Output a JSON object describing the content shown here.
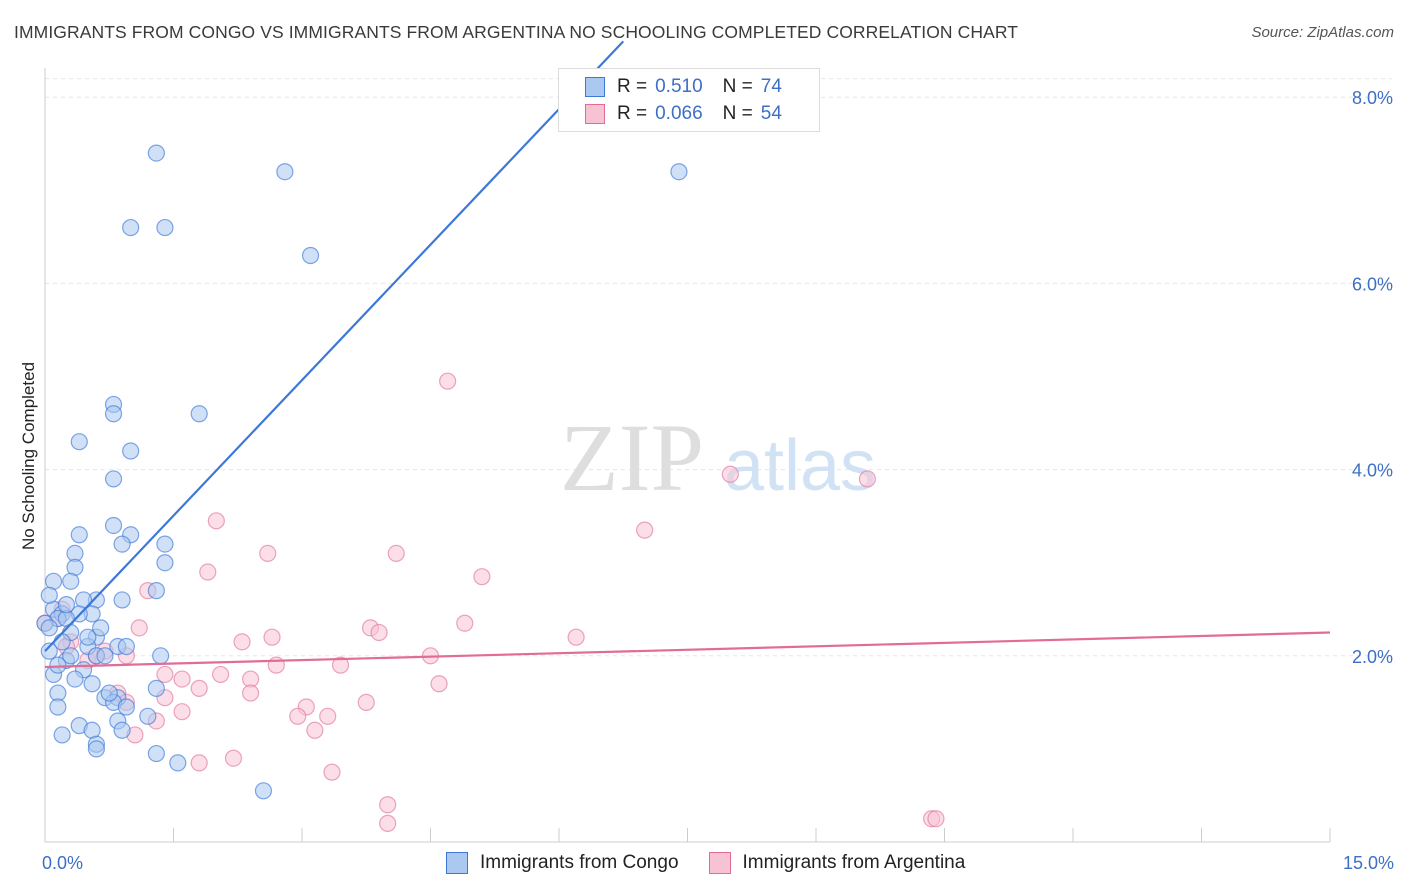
{
  "title": "IMMIGRANTS FROM CONGO VS IMMIGRANTS FROM ARGENTINA NO SCHOOLING COMPLETED CORRELATION CHART",
  "source": "Source: ZipAtlas.com",
  "watermark": {
    "zip": "ZIP",
    "atlas": "atlas"
  },
  "legend": {
    "congo": {
      "r_label": "R = ",
      "r_value": "0.510",
      "n_label": "N = ",
      "n_value": "74"
    },
    "argentina": {
      "r_label": "R = ",
      "r_value": "0.066",
      "n_label": "N = ",
      "n_value": "54"
    }
  },
  "chart_data": {
    "type": "scatter",
    "title": "IMMIGRANTS FROM CONGO VS IMMIGRANTS FROM ARGENTINA NO SCHOOLING COMPLETED CORRELATION CHART",
    "xlabel": "",
    "ylabel": "No Schooling Completed",
    "xlim": [
      0,
      15
    ],
    "ylim": [
      0,
      8.4
    ],
    "x_tick_labels": [
      "0.0%",
      "15.0%"
    ],
    "y_ticks": [
      2,
      4,
      6,
      8
    ],
    "y_tick_labels": [
      "2.0%",
      "4.0%",
      "6.0%",
      "8.0%"
    ],
    "grid": true,
    "colors": {
      "congo": "#3d78d8",
      "congo_fill": "#aac8f0",
      "argentina": "#e06c97",
      "argentina_fill": "#f7c3d3",
      "tick_label": "#3d6fc7"
    },
    "series": [
      {
        "name": "Immigrants from Congo",
        "trend": {
          "x0": 0.0,
          "y0": 2.05,
          "x1": 6.75,
          "y1": 8.6
        },
        "points": [
          [
            1.3,
            7.4
          ],
          [
            2.8,
            7.2
          ],
          [
            7.4,
            7.2
          ],
          [
            1.0,
            6.6
          ],
          [
            1.4,
            6.6
          ],
          [
            3.1,
            6.3
          ],
          [
            0.8,
            4.7
          ],
          [
            0.8,
            4.6
          ],
          [
            1.8,
            4.6
          ],
          [
            0.4,
            4.3
          ],
          [
            1.0,
            4.2
          ],
          [
            0.8,
            3.9
          ],
          [
            0.8,
            3.4
          ],
          [
            1.0,
            3.3
          ],
          [
            0.4,
            3.3
          ],
          [
            0.9,
            3.2
          ],
          [
            1.4,
            3.2
          ],
          [
            0.35,
            3.1
          ],
          [
            1.4,
            3.0
          ],
          [
            0.35,
            2.95
          ],
          [
            0.3,
            2.8
          ],
          [
            0.1,
            2.8
          ],
          [
            1.3,
            2.7
          ],
          [
            0.9,
            2.6
          ],
          [
            0.6,
            2.6
          ],
          [
            0.45,
            2.6
          ],
          [
            0.1,
            2.5
          ],
          [
            0.2,
            2.45
          ],
          [
            0.55,
            2.45
          ],
          [
            0.4,
            2.45
          ],
          [
            0.15,
            2.4
          ],
          [
            0.25,
            2.4
          ],
          [
            0.0,
            2.35
          ],
          [
            0.05,
            2.3
          ],
          [
            0.3,
            2.25
          ],
          [
            0.6,
            2.2
          ],
          [
            0.2,
            2.15
          ],
          [
            0.5,
            2.1
          ],
          [
            0.85,
            2.1
          ],
          [
            0.95,
            2.1
          ],
          [
            0.05,
            2.05
          ],
          [
            0.6,
            2.0
          ],
          [
            0.7,
            2.0
          ],
          [
            1.35,
            2.0
          ],
          [
            0.25,
            1.95
          ],
          [
            0.45,
            1.85
          ],
          [
            0.1,
            1.8
          ],
          [
            0.35,
            1.75
          ],
          [
            0.55,
            1.7
          ],
          [
            1.3,
            1.65
          ],
          [
            0.15,
            1.6
          ],
          [
            0.7,
            1.55
          ],
          [
            0.85,
            1.55
          ],
          [
            0.8,
            1.5
          ],
          [
            0.15,
            1.45
          ],
          [
            0.95,
            1.45
          ],
          [
            1.2,
            1.35
          ],
          [
            0.85,
            1.3
          ],
          [
            0.4,
            1.25
          ],
          [
            0.55,
            1.2
          ],
          [
            0.9,
            1.2
          ],
          [
            0.2,
            1.15
          ],
          [
            0.6,
            1.05
          ],
          [
            0.6,
            1.0
          ],
          [
            1.3,
            0.95
          ],
          [
            1.55,
            0.85
          ],
          [
            2.55,
            0.55
          ],
          [
            0.05,
            2.65
          ],
          [
            0.25,
            2.55
          ],
          [
            0.5,
            2.2
          ],
          [
            0.65,
            2.3
          ],
          [
            0.15,
            1.9
          ],
          [
            0.75,
            1.6
          ],
          [
            0.3,
            2.0
          ]
        ]
      },
      {
        "name": "Immigrants from Argentina",
        "trend": {
          "x0": 0.0,
          "y0": 1.88,
          "x1": 15.0,
          "y1": 2.25
        },
        "points": [
          [
            4.7,
            4.95
          ],
          [
            8.0,
            3.95
          ],
          [
            9.6,
            3.9
          ],
          [
            2.0,
            3.45
          ],
          [
            7.0,
            3.35
          ],
          [
            2.6,
            3.1
          ],
          [
            4.1,
            3.1
          ],
          [
            1.9,
            2.9
          ],
          [
            5.1,
            2.85
          ],
          [
            1.2,
            2.7
          ],
          [
            0.2,
            2.5
          ],
          [
            0.15,
            2.4
          ],
          [
            0.0,
            2.35
          ],
          [
            1.1,
            2.3
          ],
          [
            3.8,
            2.3
          ],
          [
            4.9,
            2.35
          ],
          [
            3.9,
            2.25
          ],
          [
            6.2,
            2.2
          ],
          [
            2.65,
            2.2
          ],
          [
            2.3,
            2.15
          ],
          [
            0.3,
            2.15
          ],
          [
            0.25,
            2.1
          ],
          [
            0.7,
            2.05
          ],
          [
            0.95,
            2.0
          ],
          [
            4.5,
            2.0
          ],
          [
            0.5,
            1.95
          ],
          [
            2.7,
            1.9
          ],
          [
            3.45,
            1.9
          ],
          [
            1.4,
            1.8
          ],
          [
            2.05,
            1.8
          ],
          [
            2.4,
            1.75
          ],
          [
            1.6,
            1.75
          ],
          [
            4.6,
            1.7
          ],
          [
            1.8,
            1.65
          ],
          [
            2.4,
            1.6
          ],
          [
            0.85,
            1.6
          ],
          [
            1.4,
            1.55
          ],
          [
            0.95,
            1.5
          ],
          [
            3.75,
            1.5
          ],
          [
            3.05,
            1.45
          ],
          [
            1.6,
            1.4
          ],
          [
            2.95,
            1.35
          ],
          [
            3.3,
            1.35
          ],
          [
            1.3,
            1.3
          ],
          [
            3.15,
            1.2
          ],
          [
            1.05,
            1.15
          ],
          [
            2.2,
            0.9
          ],
          [
            1.8,
            0.85
          ],
          [
            3.35,
            0.75
          ],
          [
            4.0,
            0.4
          ],
          [
            4.0,
            0.2
          ],
          [
            10.35,
            0.25
          ],
          [
            10.4,
            0.25
          ],
          [
            0.6,
            2.0
          ]
        ]
      }
    ]
  },
  "bottom_legend": {
    "congo_label": "Immigrants from Congo",
    "argentina_label": "Immigrants from Argentina"
  }
}
